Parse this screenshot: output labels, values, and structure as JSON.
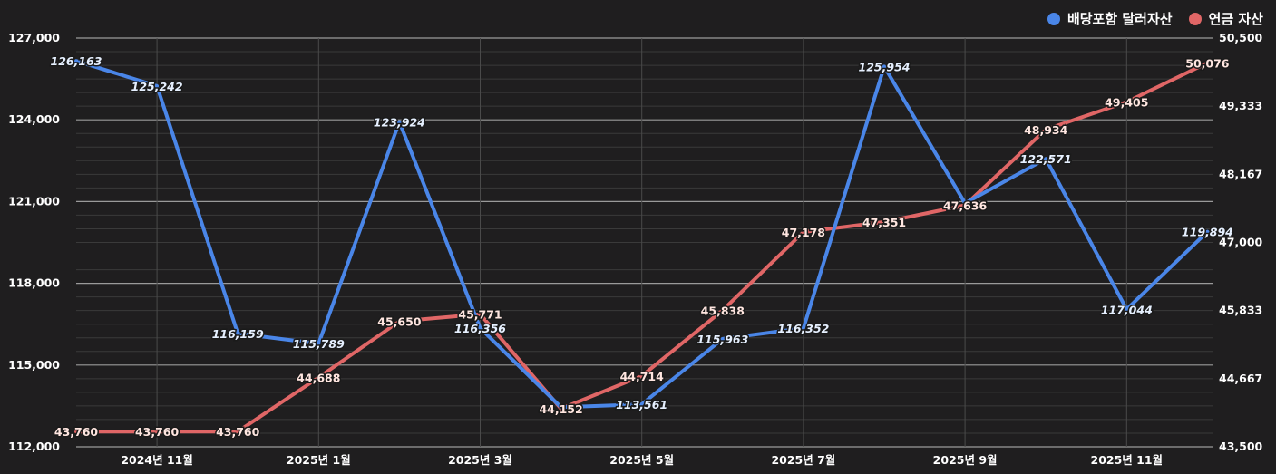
{
  "chart_data": {
    "type": "line",
    "x": [
      "2024-10",
      "2024-11",
      "2024-12",
      "2025-01",
      "2025-02",
      "2025-03",
      "2025-04",
      "2025-05",
      "2025-06",
      "2025-07",
      "2025-08",
      "2025-09",
      "2025-10",
      "2025-11",
      "2025-12"
    ],
    "x_tick_labels": [
      "2024년 11월",
      "2025년 1월",
      "2025년 3월",
      "2025년 5월",
      "2025년 7월",
      "2025년 9월",
      "2025년 11월"
    ],
    "x_tick_months": [
      "2024-11",
      "2025-01",
      "2025-03",
      "2025-05",
      "2025-07",
      "2025-09",
      "2025-11"
    ],
    "series": [
      {
        "name": "배당포함 달러자산",
        "axis": "left",
        "color": "#4a86e8",
        "values": [
          126163,
          125242,
          116159,
          115789,
          123924,
          116356,
          113452,
          113561,
          115963,
          116352,
          125954,
          120940,
          122571,
          117044,
          119894
        ],
        "labels": [
          "126,163",
          "125,242",
          "116,159",
          "115,789",
          "123,924",
          "116,356",
          "",
          "113,561",
          "115,963",
          "116,352",
          "125,954",
          "",
          "122,571",
          "117,044",
          "119,894"
        ]
      },
      {
        "name": "연금 자산",
        "axis": "right",
        "color": "#e06666",
        "values": [
          43760,
          43760,
          43760,
          44688,
          45650,
          45771,
          44152,
          44714,
          45838,
          47178,
          47351,
          47636,
          48934,
          49405,
          50076
        ],
        "labels": [
          "43,760",
          "43,760",
          "43,760",
          "44,688",
          "45,650",
          "45,771",
          "44,152",
          "44,714",
          "45,838",
          "47,178",
          "47,351",
          "47,636",
          "48,934",
          "49,405",
          "50,076"
        ]
      }
    ],
    "y_left": {
      "min": 112000,
      "max": 127000,
      "ticks": [
        "112,000",
        "115,000",
        "118,000",
        "121,000",
        "124,000",
        "127,000"
      ]
    },
    "y_right": {
      "min": 43500,
      "max": 50500,
      "ticks": [
        "43,500",
        "44,667",
        "45,833",
        "47,000",
        "48,167",
        "49,333",
        "50,500"
      ]
    },
    "legend_position": "top-right",
    "grid": true
  }
}
